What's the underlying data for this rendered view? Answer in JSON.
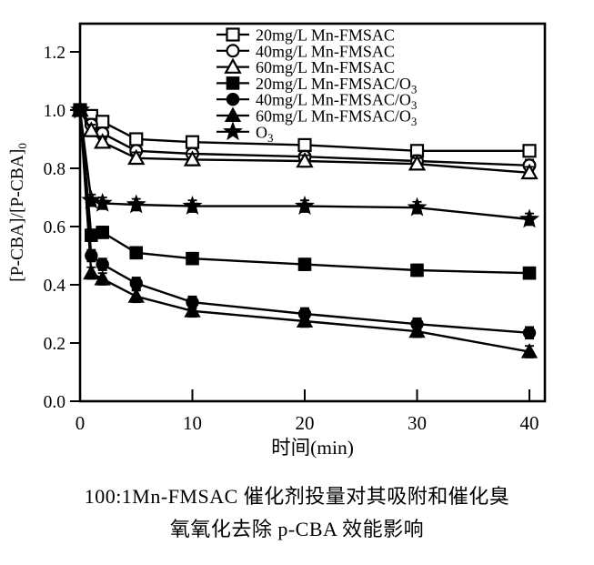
{
  "chart_data": {
    "type": "line",
    "title": "",
    "xlabel": "时间(min)",
    "ylabel": "[P-CBA]/[P-CBA]",
    "ylabel_subscript": "0",
    "x": [
      0,
      1,
      2,
      5,
      10,
      20,
      30,
      40
    ],
    "xticks": [
      "0",
      "10",
      "20",
      "30",
      "40"
    ],
    "yticks": [
      "0.0",
      "0.2",
      "0.4",
      "0.6",
      "0.8",
      "1.0",
      "1.2"
    ],
    "xlim": [
      0,
      41.4
    ],
    "ylim": [
      0,
      1.3
    ],
    "grid": false,
    "legend_position": "inside-top-center",
    "error_bar": 0.02,
    "series": [
      {
        "label": "20mg/L Mn-FMSAC",
        "label_subscript": "",
        "marker": "open-square",
        "values": [
          1.0,
          0.98,
          0.96,
          0.9,
          0.89,
          0.88,
          0.86,
          0.86
        ]
      },
      {
        "label": "40mg/L Mn-FMSAC",
        "label_subscript": "",
        "marker": "open-circle",
        "values": [
          1.0,
          0.95,
          0.92,
          0.86,
          0.85,
          0.84,
          0.825,
          0.81
        ]
      },
      {
        "label": "60mg/L Mn-FMSAC",
        "label_subscript": "",
        "marker": "open-triangle",
        "values": [
          1.0,
          0.93,
          0.89,
          0.835,
          0.83,
          0.825,
          0.815,
          0.785
        ]
      },
      {
        "label": "20mg/L Mn-FMSAC/O",
        "label_subscript": "3",
        "marker": "filled-square",
        "values": [
          1.0,
          0.57,
          0.58,
          0.51,
          0.49,
          0.47,
          0.45,
          0.44
        ]
      },
      {
        "label": "40mg/L Mn-FMSAC/O",
        "label_subscript": "3",
        "marker": "filled-circle",
        "values": [
          1.0,
          0.5,
          0.47,
          0.405,
          0.34,
          0.3,
          0.265,
          0.235
        ]
      },
      {
        "label": "60mg/L Mn-FMSAC/O",
        "label_subscript": "3",
        "marker": "filled-triangle",
        "values": [
          1.0,
          0.44,
          0.42,
          0.36,
          0.31,
          0.275,
          0.24,
          0.17
        ]
      },
      {
        "label": "O",
        "label_subscript": "3",
        "marker": "star",
        "values": [
          1.0,
          0.69,
          0.68,
          0.675,
          0.67,
          0.67,
          0.665,
          0.625
        ]
      }
    ]
  },
  "caption": {
    "line1": "100:1Mn-FMSAC 催化剂投量对其吸附和催化臭",
    "line2": "氧氧化去除 p-CBA 效能影响"
  },
  "colors": {
    "foreground": "#000000",
    "background": "#ffffff"
  }
}
